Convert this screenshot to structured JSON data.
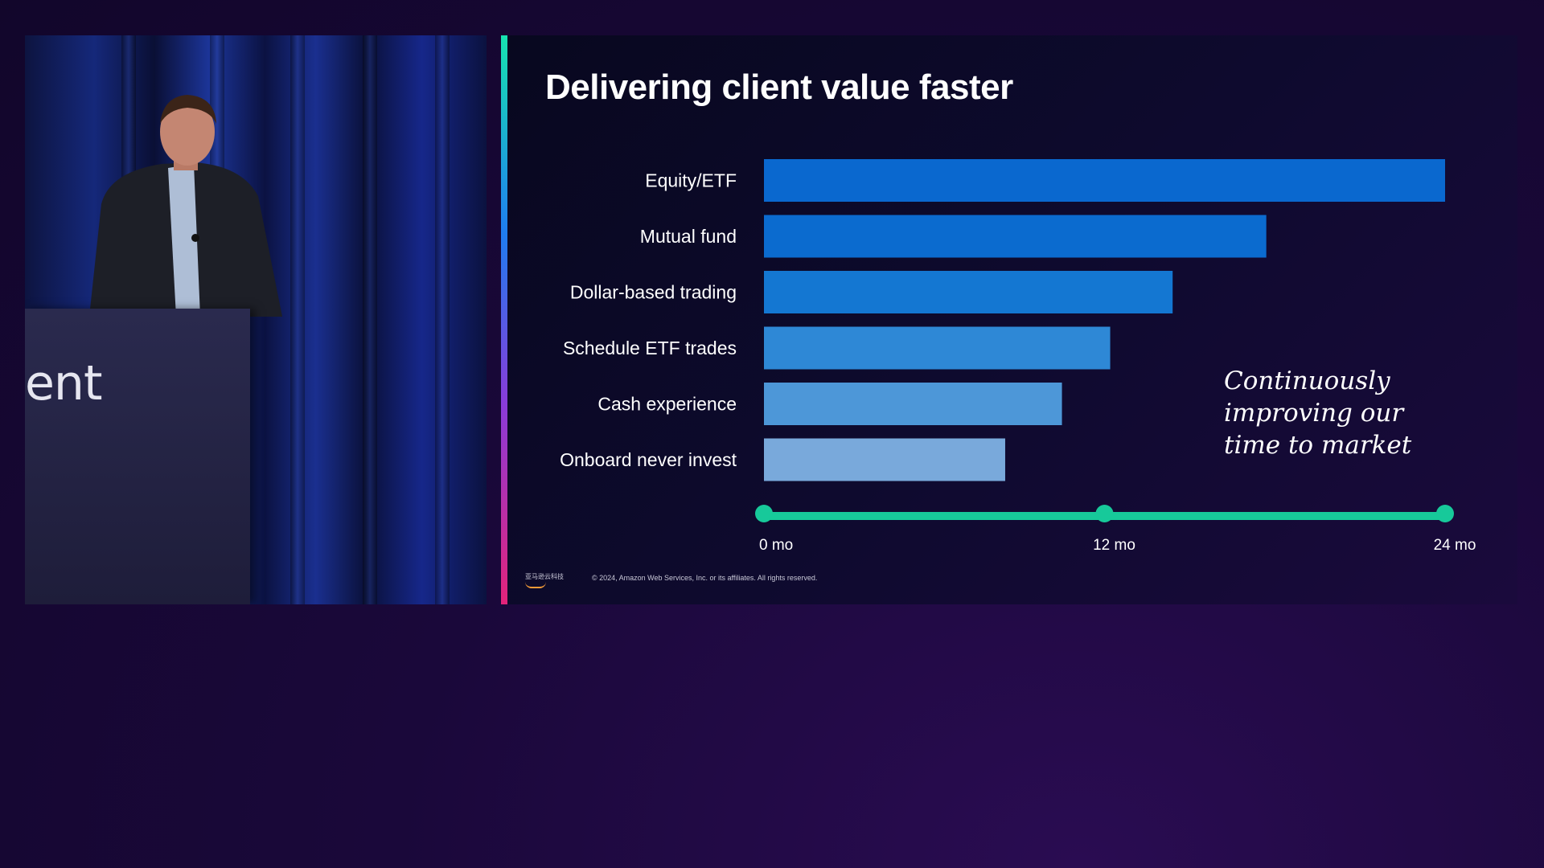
{
  "podium_text": "ent",
  "slide": {
    "title": "Delivering client value faster",
    "tagline_lines": [
      "Continuously",
      "improving our",
      "time to market"
    ],
    "logo_text": "亚马逊云科技",
    "copyright": "© 2024, Amazon Web Services, Inc. or its affiliates. All rights reserved."
  },
  "colors": {
    "accent_teal": "#17c99a",
    "bar_shades": [
      "#0a68cf",
      "#0b6bcf",
      "#1477d2",
      "#2e88d6",
      "#4d97d8",
      "#79a9db"
    ]
  },
  "chart_data": {
    "type": "bar",
    "orientation": "horizontal",
    "title": "Delivering client value faster",
    "categories": [
      "Equity/ETF",
      "Mutual fund",
      "Dollar-based trading",
      "Schedule ETF trades",
      "Cash experience",
      "Onboard never invest"
    ],
    "values": [
      24,
      17.7,
      14.4,
      12.2,
      10.5,
      8.5
    ],
    "unit": "mo",
    "xlim": [
      0,
      24
    ],
    "ticks": [
      0,
      12,
      24
    ],
    "tick_labels": [
      "0 mo",
      "12 mo",
      "24 mo"
    ],
    "xlabel": "",
    "ylabel": "",
    "grid": false
  }
}
